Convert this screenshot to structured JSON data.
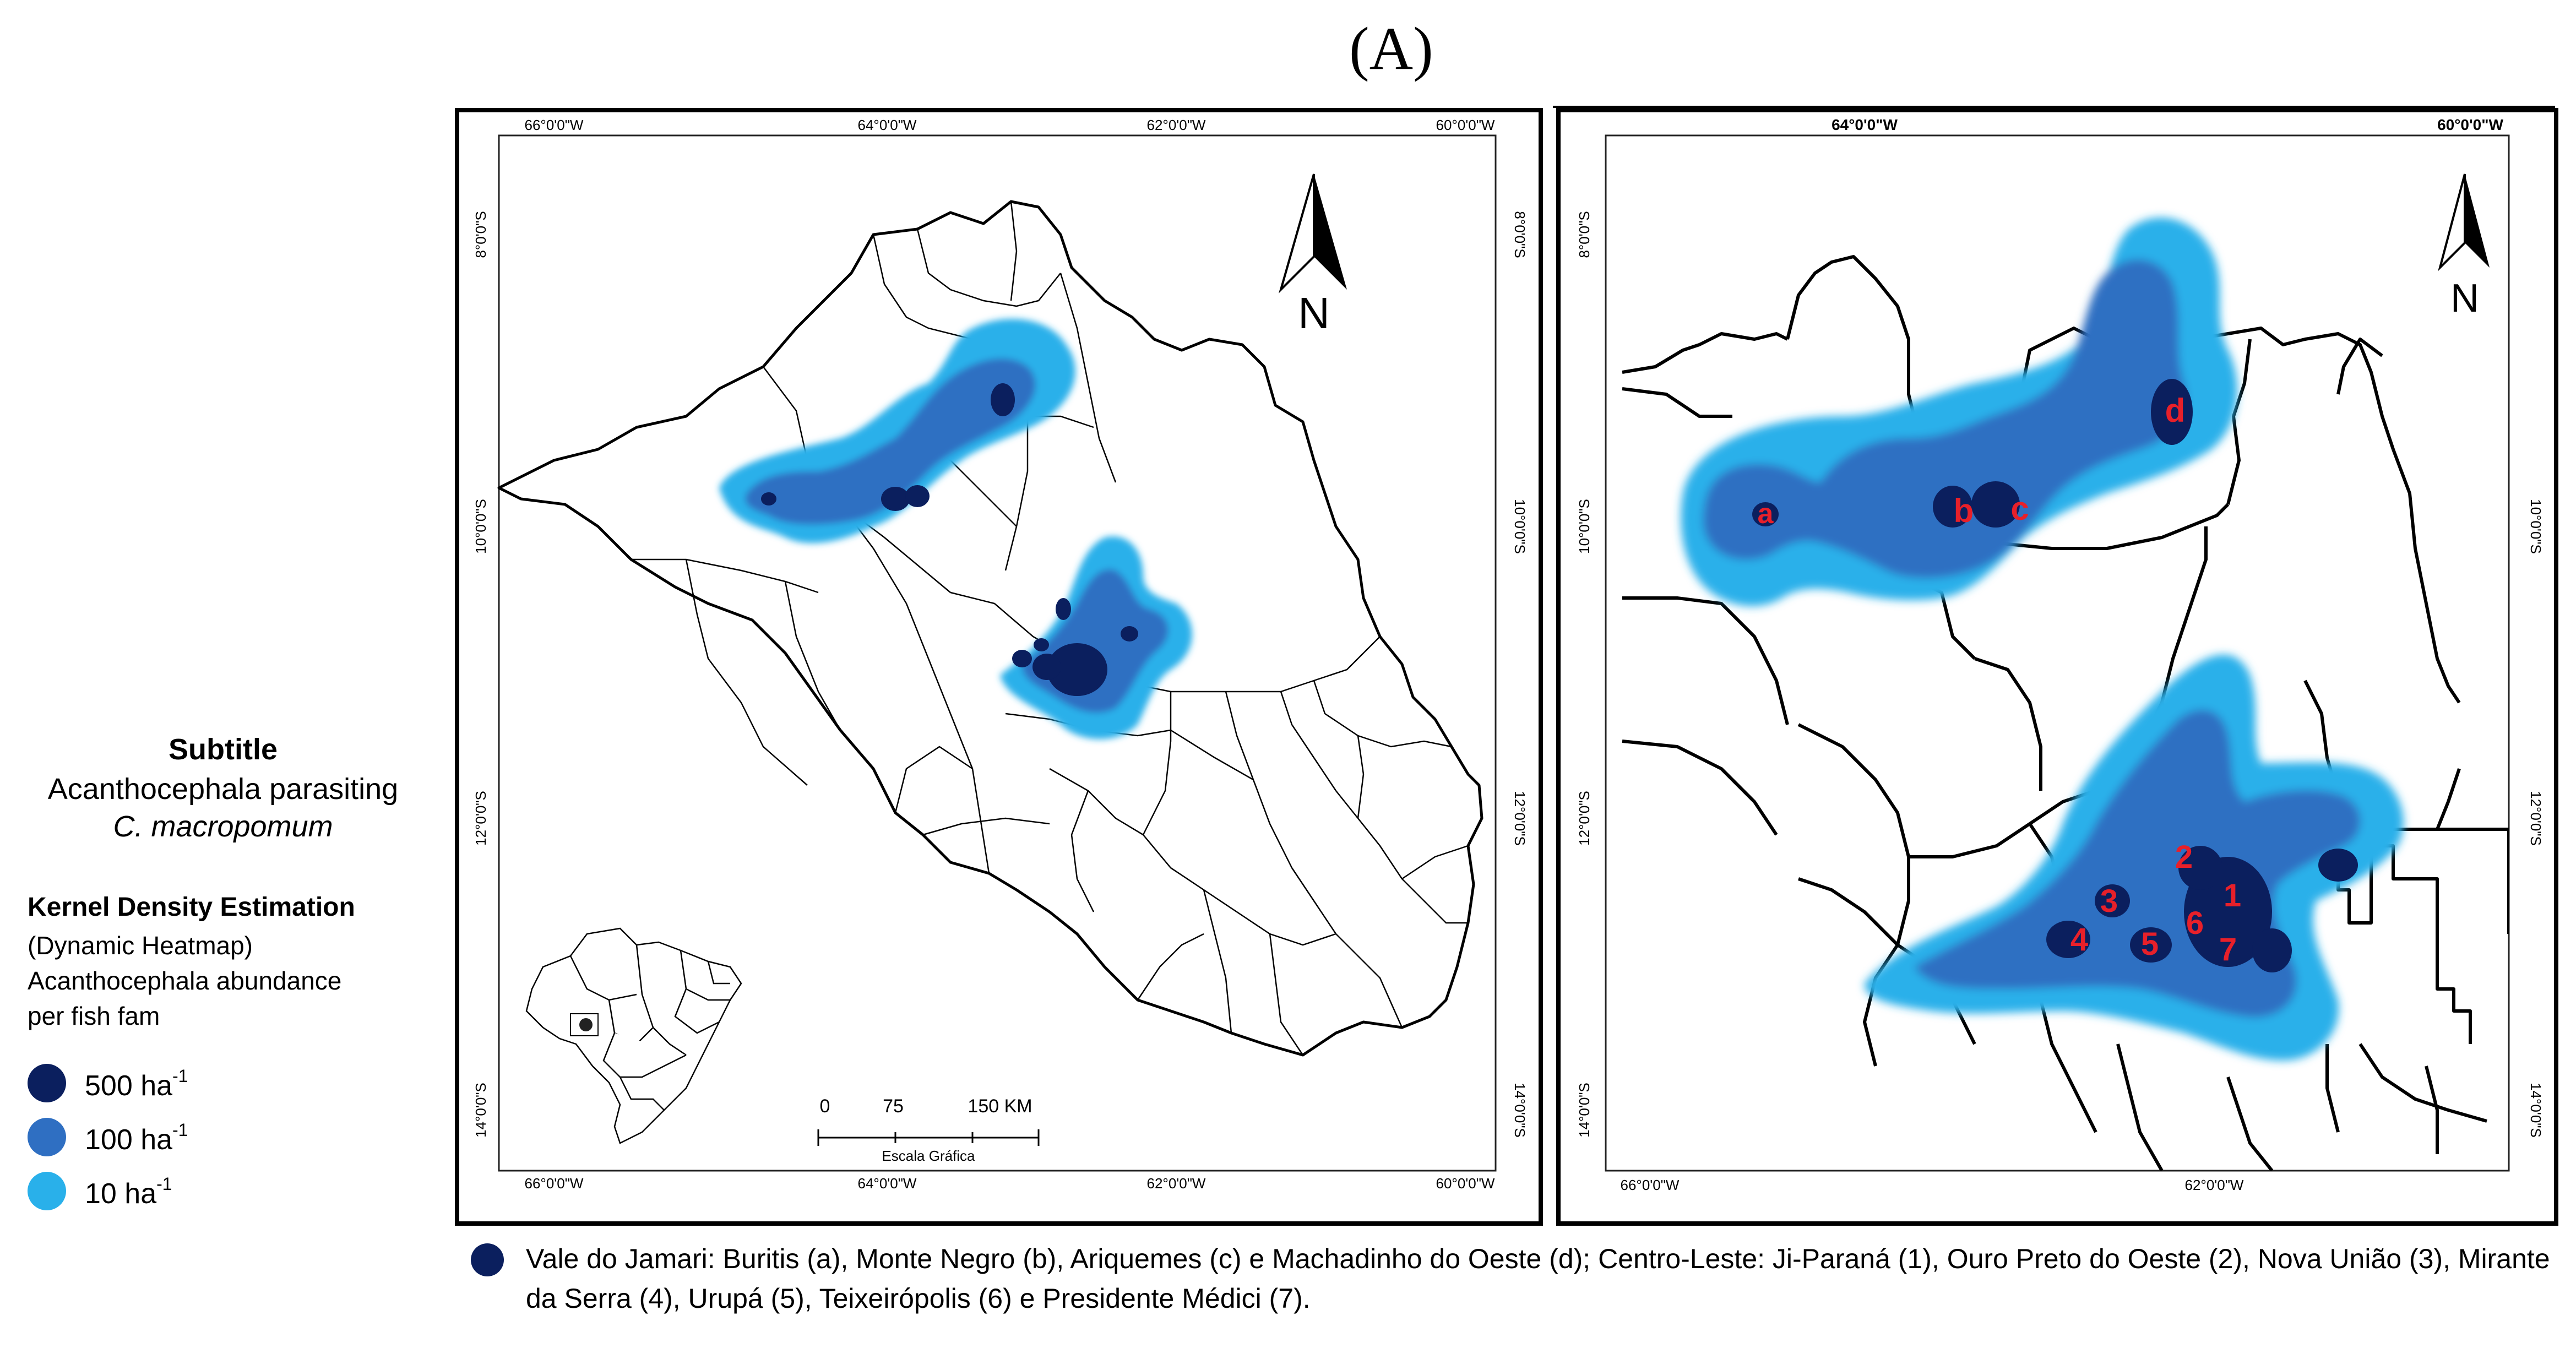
{
  "panel_label": "(A)",
  "legend": {
    "subtitle": "Subtitle",
    "subtitle_line1": "Acanthocephala parasiting",
    "subtitle_line2": "C. macropomum",
    "kde_title": "Kernel Density Estimation",
    "kde_line1": "(Dynamic Heatmap)",
    "kde_line2": "Acanthocephala abundance",
    "kde_line3": "per fish fam",
    "classes": [
      {
        "label": "500 ha",
        "exp": "-1",
        "color": "#0b1f5e"
      },
      {
        "label": "100 ha",
        "exp": "-1",
        "color": "#2f6fc2"
      },
      {
        "label": "10 ha",
        "exp": "-1",
        "color": "#29b0ea"
      }
    ]
  },
  "map_left": {
    "top_ticks": [
      "66°0'0\"W",
      "64°0'0\"W",
      "62°0'0\"W",
      "60°0'0\"W"
    ],
    "bottom_ticks": [
      "66°0'0\"W",
      "64°0'0\"W",
      "62°0'0\"W",
      "60°0'0\"W"
    ],
    "side_ticks": [
      "8°0'0\"S",
      "10°0'0\"S",
      "12°0'0\"S",
      "14°0'0\"S"
    ],
    "north": "N",
    "scale_labels": [
      "0",
      "75",
      "150 KM"
    ],
    "scale_title": "Escala Gráfica"
  },
  "map_right": {
    "top_ticks": [
      "64°0'0\"W",
      "60°0'0\"W"
    ],
    "bottom_ticks": [
      "66°0'0\"W",
      "62°0'0\"W"
    ],
    "side_ticks": [
      "8°0'0\"S",
      "10°0'0\"S",
      "12°0'0\"S",
      "14°0'0\"S"
    ],
    "north": "N",
    "points": [
      "a",
      "b",
      "c",
      "d",
      "1",
      "2",
      "3",
      "4",
      "5",
      "6",
      "7"
    ]
  },
  "caption": "Vale do Jamari: Buritis (a), Monte Negro (b), Ariquemes (c) e Machadinho do Oeste (d); Centro-Leste: Ji-Paraná (1), Ouro Preto do Oeste (2), Nova União (3), Mirante da Serra (4), Urupá (5), Teixeirópolis (6) e Presidente Médici (7).",
  "colors": {
    "dark": "#0b1f5e",
    "mid": "#2f6fc2",
    "light": "#29b0ea",
    "point_label": "#e8202a"
  }
}
